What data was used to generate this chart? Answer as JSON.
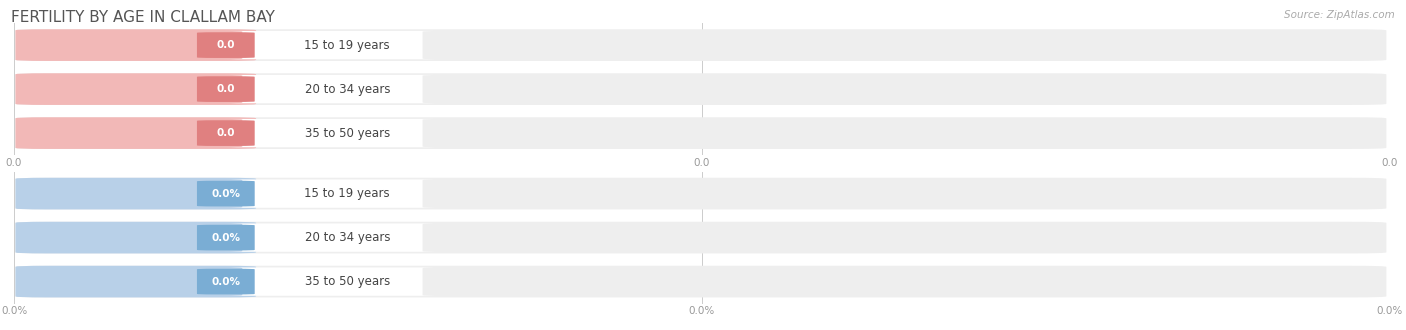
{
  "title": "FERTILITY BY AGE IN CLALLAM BAY",
  "source": "Source: ZipAtlas.com",
  "top_section": {
    "categories": [
      "15 to 19 years",
      "20 to 34 years",
      "35 to 50 years"
    ],
    "values": [
      0.0,
      0.0,
      0.0
    ],
    "pill_color": "#f2b8b7",
    "badge_color": "#e08080",
    "bar_bg_color": "#eeeeee",
    "is_percent": false
  },
  "bottom_section": {
    "categories": [
      "15 to 19 years",
      "20 to 34 years",
      "35 to 50 years"
    ],
    "values": [
      0.0,
      0.0,
      0.0
    ],
    "pill_color": "#b8d0e8",
    "badge_color": "#7aadd4",
    "bar_bg_color": "#eeeeee",
    "is_percent": true
  },
  "bg_color": "#ffffff",
  "bar_bg_color": "#eeeeee",
  "title_fontsize": 11,
  "label_fontsize": 8.5,
  "value_fontsize": 7.5,
  "axis_fontsize": 7.5,
  "source_fontsize": 7.5
}
